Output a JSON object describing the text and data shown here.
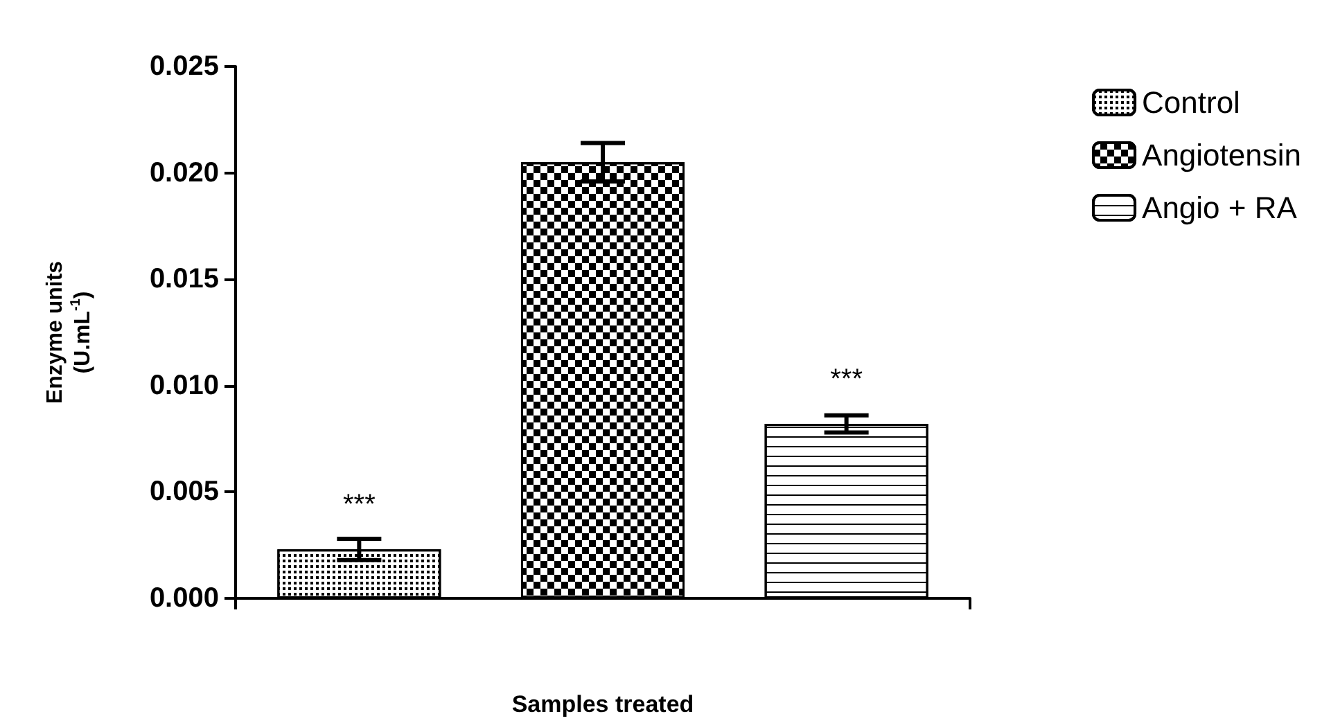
{
  "chart_data": {
    "type": "bar",
    "xlabel": "Samples treated",
    "ylabel": "Enzyme units\n(U.mL$^{-1}$)",
    "categories": [
      null
    ],
    "series": [
      {
        "name": "Control",
        "color": "#000000",
        "values": [
          0.0023
        ],
        "errors": [
          0.0005
        ],
        "value_labels": [
          "***"
        ]
      },
      {
        "name": "Angiotensin",
        "color": "#000000",
        "values": [
          0.0205
        ],
        "errors": [
          0.0009
        ],
        "value_labels": [
          null
        ]
      },
      {
        "name": "Angio + RA",
        "color": "#000000",
        "values": [
          0.0082
        ],
        "errors": [
          0.0004
        ],
        "value_labels": [
          "***"
        ]
      }
    ],
    "ylim": [
      0,
      0.025
    ],
    "yticks": [
      {
        "value": 0,
        "label": "0.000"
      },
      {
        "value": 0.005,
        "label": "0.005"
      },
      {
        "value": 0.01,
        "label": "0.010"
      },
      {
        "value": 0.015,
        "label": "0.015"
      },
      {
        "value": 0.02,
        "label": "0.020"
      },
      {
        "value": 0.025,
        "label": "0.025"
      }
    ],
    "grid": false,
    "legend": "top right"
  }
}
